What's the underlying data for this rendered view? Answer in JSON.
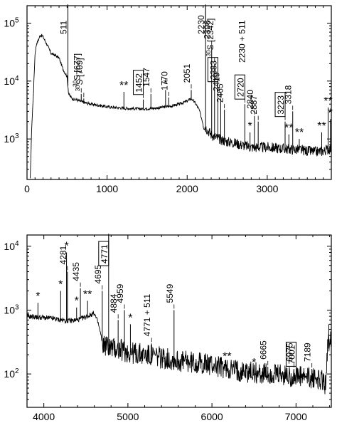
{
  "chart_data": [
    {
      "type": "line",
      "x_range": [
        0,
        3800
      ],
      "y_scale": "log",
      "y_range": [
        200,
        200000
      ],
      "x_ticks": [
        {
          "v": 0,
          "label": "0"
        },
        {
          "v": 1000,
          "label": "1000"
        },
        {
          "v": 2000,
          "label": "2000"
        },
        {
          "v": 3000,
          "label": "3000"
        }
      ],
      "y_ticks": [
        {
          "v": 100000,
          "label": "10",
          "exp": "5"
        },
        {
          "v": 10000,
          "label": "10",
          "exp": "4"
        },
        {
          "v": 1000,
          "label": "10",
          "exp": "3"
        }
      ],
      "continuum": [
        [
          40,
          200
        ],
        [
          60,
          1800
        ],
        [
          80,
          6000
        ],
        [
          100,
          30000
        ],
        [
          120,
          45000
        ],
        [
          140,
          50000
        ],
        [
          160,
          60000
        ],
        [
          180,
          62000
        ],
        [
          200,
          58000
        ],
        [
          230,
          48000
        ],
        [
          260,
          40000
        ],
        [
          300,
          30000
        ],
        [
          350,
          28000
        ],
        [
          400,
          25000
        ],
        [
          450,
          16000
        ],
        [
          500,
          12000
        ],
        [
          520,
          6000
        ],
        [
          560,
          5000
        ],
        [
          600,
          4800
        ],
        [
          650,
          4600
        ],
        [
          700,
          4300
        ],
        [
          800,
          4000
        ],
        [
          900,
          3800
        ],
        [
          1000,
          3600
        ],
        [
          1200,
          3400
        ],
        [
          1400,
          3300
        ],
        [
          1600,
          3400
        ],
        [
          1800,
          3700
        ],
        [
          1900,
          4000
        ],
        [
          2000,
          4500
        ],
        [
          2050,
          5000
        ],
        [
          2100,
          4200
        ],
        [
          2150,
          3200
        ],
        [
          2200,
          1800
        ],
        [
          2300,
          1200
        ],
        [
          2400,
          1000
        ],
        [
          2500,
          900
        ],
        [
          2600,
          850
        ],
        [
          2700,
          780
        ],
        [
          2800,
          720
        ],
        [
          3000,
          720
        ],
        [
          3200,
          680
        ],
        [
          3400,
          650
        ],
        [
          3600,
          600
        ],
        [
          3700,
          620
        ],
        [
          3800,
          700
        ]
      ],
      "peaks": [
        {
          "x": 511,
          "y": 200000,
          "label": "511"
        },
        {
          "x": 677,
          "y": 6000,
          "label": "S [677]",
          "sup": "30"
        },
        {
          "x": 709,
          "y": 5000,
          "label": "S [709]",
          "sup": "30"
        },
        {
          "x": 1210,
          "y": 6500,
          "label": "**"
        },
        {
          "x": 1452,
          "y": 4800,
          "label": "1452",
          "boxed": true
        },
        {
          "x": 1547,
          "y": 6000,
          "label": "1547"
        },
        {
          "x": 1730,
          "y": 7000,
          "label": "*"
        },
        {
          "x": 1770,
          "y": 5200,
          "label": "1770"
        },
        {
          "x": 2051,
          "y": 7000,
          "label": "2051"
        },
        {
          "x": 2230,
          "y": 200000,
          "label": "2230"
        },
        {
          "x": 2306,
          "y": 40000,
          "label": "2306"
        },
        {
          "x": 2342,
          "y": 20000,
          "label": "S [2342]",
          "sup": "30"
        },
        {
          "x": 2383,
          "y": 8000,
          "label": "2383",
          "boxed": true
        },
        {
          "x": 2419,
          "y": 5000,
          "label": "2419"
        },
        {
          "x": 2465,
          "y": 3200,
          "label": "2465"
        },
        {
          "x": 2720,
          "y": 4000,
          "label": "2720",
          "boxed": true
        },
        {
          "x": 2785,
          "y": 1300,
          "label": "*"
        },
        {
          "x": 2840,
          "y": 2500,
          "label": "2840"
        },
        {
          "x": 2887,
          "y": 2000,
          "label": "2887"
        },
        {
          "x": 3223,
          "y": 2000,
          "label": "3223",
          "boxed": true
        },
        {
          "x": 3270,
          "y": 1200,
          "label": "**"
        },
        {
          "x": 3318,
          "y": 3000,
          "label": "3318"
        },
        {
          "x": 3400,
          "y": 1000,
          "label": "**"
        },
        {
          "x": 3680,
          "y": 1300,
          "label": "**"
        },
        {
          "x": 3760,
          "y": 3500,
          "label": "**"
        },
        {
          "x": 3790,
          "y": 2200,
          "label": "*"
        }
      ],
      "annotation": "2230 + 511"
    },
    {
      "type": "line",
      "x_range": [
        3800,
        7420
      ],
      "y_scale": "log",
      "y_range": [
        30,
        15000
      ],
      "x_ticks": [
        {
          "v": 4000,
          "label": "4000"
        },
        {
          "v": 5000,
          "label": "5000"
        },
        {
          "v": 6000,
          "label": "6000"
        },
        {
          "v": 7000,
          "label": "7000"
        }
      ],
      "y_ticks": [
        {
          "v": 10000,
          "label": "10",
          "exp": "4"
        },
        {
          "v": 1000,
          "label": "10",
          "exp": "3"
        },
        {
          "v": 100,
          "label": "10",
          "exp": "2"
        }
      ],
      "continuum": [
        [
          3800,
          800
        ],
        [
          3900,
          780
        ],
        [
          4000,
          760
        ],
        [
          4100,
          740
        ],
        [
          4200,
          700
        ],
        [
          4300,
          680
        ],
        [
          4400,
          700
        ],
        [
          4500,
          780
        ],
        [
          4600,
          900
        ],
        [
          4650,
          600
        ],
        [
          4700,
          300
        ],
        [
          4800,
          260
        ],
        [
          4900,
          240
        ],
        [
          5000,
          220
        ],
        [
          5200,
          200
        ],
        [
          5400,
          180
        ],
        [
          5600,
          160
        ],
        [
          5800,
          150
        ],
        [
          6000,
          140
        ],
        [
          6200,
          120
        ],
        [
          6400,
          110
        ],
        [
          6600,
          100
        ],
        [
          6800,
          95
        ],
        [
          7000,
          90
        ],
        [
          7200,
          85
        ],
        [
          7300,
          80
        ],
        [
          7350,
          70
        ],
        [
          7380,
          300
        ],
        [
          7420,
          400
        ]
      ],
      "peaks": [
        {
          "x": 3930,
          "y": 1300,
          "label": "*"
        },
        {
          "x": 4200,
          "y": 2000,
          "label": "*"
        },
        {
          "x": 4270,
          "y": 8000,
          "label": "*"
        },
        {
          "x": 4281,
          "y": 4000,
          "label": "4281"
        },
        {
          "x": 4390,
          "y": 1100,
          "label": "*"
        },
        {
          "x": 4435,
          "y": 2200,
          "label": "4435"
        },
        {
          "x": 4520,
          "y": 1400,
          "label": "**"
        },
        {
          "x": 4695,
          "y": 2000,
          "label": "4695"
        },
        {
          "x": 4771,
          "y": 15000,
          "label": "4771",
          "boxed": true
        },
        {
          "x": 4884,
          "y": 700,
          "label": "4884"
        },
        {
          "x": 4959,
          "y": 1000,
          "label": "4959"
        },
        {
          "x": 5030,
          "y": 600,
          "label": "*"
        },
        {
          "x": 5282,
          "y": 300,
          "label": "4771 + 511"
        },
        {
          "x": 5549,
          "y": 1000,
          "label": "5549"
        },
        {
          "x": 6180,
          "y": 150,
          "label": "**"
        },
        {
          "x": 6500,
          "y": 120,
          "label": "*"
        },
        {
          "x": 6665,
          "y": 130,
          "label": "6665"
        },
        {
          "x": 6975,
          "y": 120,
          "label": "6975"
        },
        {
          "x": 7001,
          "y": 110,
          "label": "7001",
          "boxed": true
        },
        {
          "x": 7189,
          "y": 120,
          "label": "7189"
        },
        {
          "x": 7390,
          "y": 600,
          "label": ""
        }
      ]
    }
  ]
}
